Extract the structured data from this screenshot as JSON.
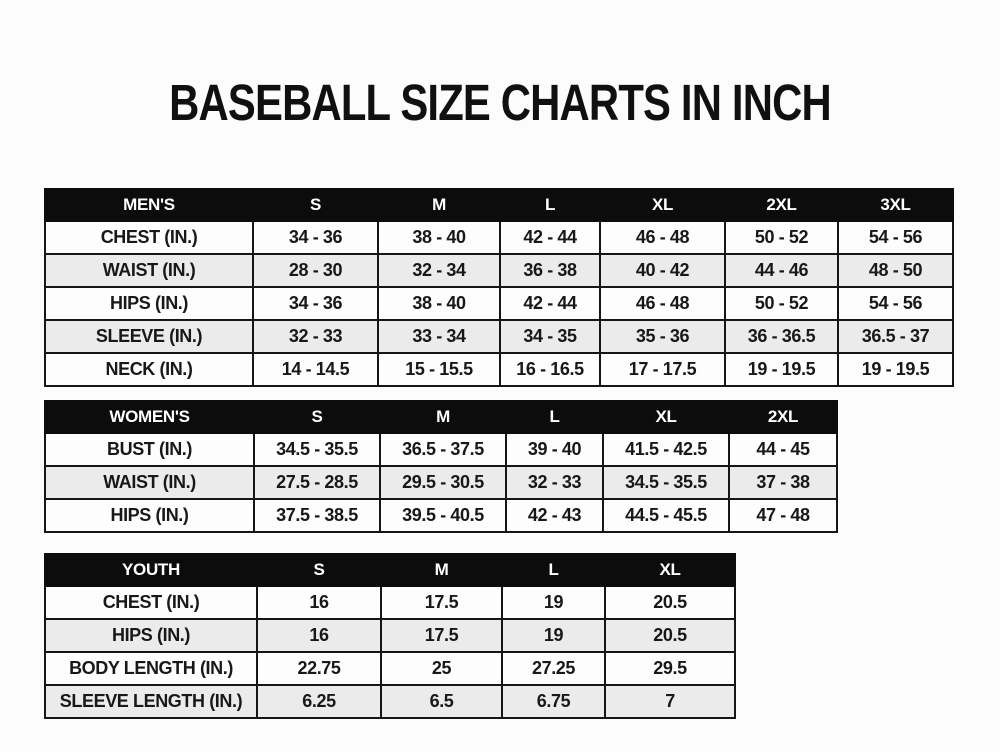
{
  "title": "BASEBALL SIZE CHARTS IN INCH",
  "colors": {
    "title_text": "#101010",
    "header_bg": "#0c0c0c",
    "header_text": "#ffffff",
    "row_bg": "#fdfdfd",
    "row_alt_bg": "#ebebeb",
    "border": "#161616",
    "page_bg": "#fcfcfc"
  },
  "tables": [
    {
      "id": "mens",
      "header": [
        "MEN'S",
        "S",
        "M",
        "L",
        "XL",
        "2XL",
        "3XL"
      ],
      "rows": [
        {
          "label": "CHEST (IN.)",
          "values": [
            "34 - 36",
            "38 - 40",
            "42 - 44",
            "46 - 48",
            "50 - 52",
            "54 - 56"
          ]
        },
        {
          "label": "WAIST (IN.)",
          "values": [
            "28 - 30",
            "32 - 34",
            "36 - 38",
            "40 - 42",
            "44 - 46",
            "48 - 50"
          ]
        },
        {
          "label": "HIPS (IN.)",
          "values": [
            "34 - 36",
            "38 - 40",
            "42 - 44",
            "46 - 48",
            "50 - 52",
            "54 - 56"
          ]
        },
        {
          "label": "SLEEVE (IN.)",
          "values": [
            "32 - 33",
            "33 - 34",
            "34 - 35",
            "35 - 36",
            "36 - 36.5",
            "36.5 - 37"
          ]
        },
        {
          "label": "NECK (IN.)",
          "values": [
            "14 - 14.5",
            "15 - 15.5",
            "16 - 16.5",
            "17 - 17.5",
            "19 - 19.5",
            "19 - 19.5"
          ]
        }
      ]
    },
    {
      "id": "womens",
      "header": [
        "WOMEN'S",
        "S",
        "M",
        "L",
        "XL",
        "2XL"
      ],
      "rows": [
        {
          "label": "BUST (IN.)",
          "values": [
            "34.5 - 35.5",
            "36.5 - 37.5",
            "39 - 40",
            "41.5 - 42.5",
            "44 - 45"
          ]
        },
        {
          "label": "WAIST (IN.)",
          "values": [
            "27.5 - 28.5",
            "29.5 - 30.5",
            "32 - 33",
            "34.5 - 35.5",
            "37 - 38"
          ]
        },
        {
          "label": "HIPS (IN.)",
          "values": [
            "37.5 - 38.5",
            "39.5 - 40.5",
            "42 - 43",
            "44.5 - 45.5",
            "47 - 48"
          ]
        }
      ]
    },
    {
      "id": "youth",
      "header": [
        "YOUTH",
        "S",
        "M",
        "L",
        "XL"
      ],
      "rows": [
        {
          "label": "CHEST (IN.)",
          "values": [
            "16",
            "17.5",
            "19",
            "20.5"
          ]
        },
        {
          "label": "HIPS (IN.)",
          "values": [
            "16",
            "17.5",
            "19",
            "20.5"
          ]
        },
        {
          "label": "BODY LENGTH (IN.)",
          "values": [
            "22.75",
            "25",
            "27.25",
            "29.5"
          ]
        },
        {
          "label": "SLEEVE LENGTH (IN.)",
          "values": [
            "6.25",
            "6.5",
            "6.75",
            "7"
          ]
        }
      ]
    }
  ]
}
